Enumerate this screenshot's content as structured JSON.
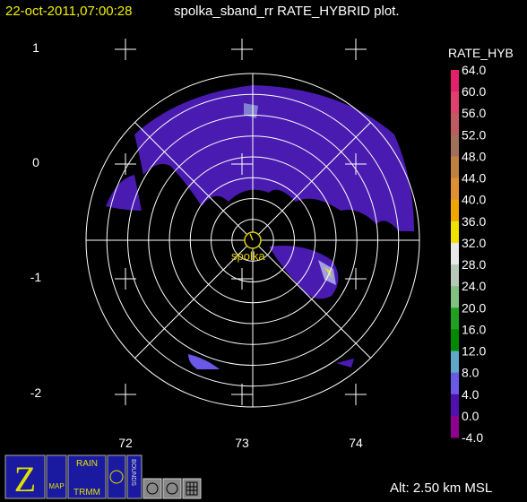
{
  "header": {
    "timestamp": "22-oct-2011,07:00:28",
    "title": "spolka_sband_rr RATE_HYBRID  plot."
  },
  "y_labels": [
    "1",
    "0",
    "-1",
    "-2"
  ],
  "x_labels": [
    "72",
    "73",
    "74"
  ],
  "station": "spolka",
  "colorbar": {
    "title": "RATE_HYB",
    "labels": [
      "64.0",
      "60.0",
      "56.0",
      "52.0",
      "48.0",
      "44.0",
      "40.0",
      "36.0",
      "32.0",
      "28.0",
      "24.0",
      "20.0",
      "16.0",
      "12.0",
      "8.0",
      "4.0",
      "0.0",
      "-4.0"
    ],
    "colors": [
      "#e3206a",
      "#e0406e",
      "#c05a60",
      "#a07058",
      "#c08040",
      "#e09030",
      "#f0a800",
      "#f0e000",
      "#e8e8e8",
      "#b8c8b8",
      "#80c080",
      "#20a020",
      "#008a00",
      "#60a8c8",
      "#6a58e8",
      "#5010b0",
      "#900090"
    ]
  },
  "altitude": "Alt: 2.50 km MSL",
  "toolbar": {
    "zoom": "Z",
    "map": "MAP",
    "rain": "RAIN",
    "trmm": "TRMM",
    "bounds": "BOUNDS"
  }
}
